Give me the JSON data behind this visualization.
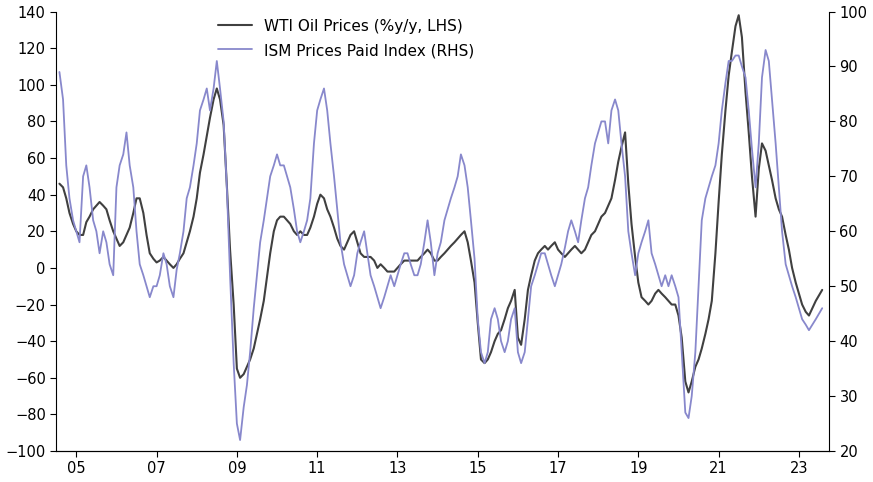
{
  "wti_label": "WTI Oil Prices (%y/y, LHS)",
  "ism_label": "ISM Prices Paid Index (RHS)",
  "wti_color": "#404040",
  "ism_color": "#8888cc",
  "lhs_ylim": [
    -100,
    140
  ],
  "rhs_ylim": [
    20,
    100
  ],
  "lhs_yticks": [
    -100,
    -80,
    -60,
    -40,
    -20,
    0,
    20,
    40,
    60,
    80,
    100,
    120,
    140
  ],
  "rhs_yticks": [
    20,
    30,
    40,
    50,
    60,
    70,
    80,
    90,
    100
  ],
  "xtick_labels": [
    "05",
    "07",
    "09",
    "11",
    "13",
    "15",
    "17",
    "19",
    "21",
    "23"
  ],
  "xtick_positions": [
    2005,
    2007,
    2009,
    2011,
    2013,
    2015,
    2017,
    2019,
    2021,
    2023
  ],
  "background_color": "#ffffff",
  "xlim": [
    2004.5,
    2023.75
  ],
  "lhs_linewidth": 1.5,
  "rhs_linewidth": 1.3,
  "wti_dates": [
    2004.58,
    2004.67,
    2004.75,
    2004.83,
    2004.92,
    2005.0,
    2005.08,
    2005.17,
    2005.25,
    2005.33,
    2005.42,
    2005.5,
    2005.58,
    2005.67,
    2005.75,
    2005.83,
    2005.92,
    2006.0,
    2006.08,
    2006.17,
    2006.25,
    2006.33,
    2006.42,
    2006.5,
    2006.58,
    2006.67,
    2006.75,
    2006.83,
    2006.92,
    2007.0,
    2007.08,
    2007.17,
    2007.25,
    2007.33,
    2007.42,
    2007.5,
    2007.58,
    2007.67,
    2007.75,
    2007.83,
    2007.92,
    2008.0,
    2008.08,
    2008.17,
    2008.25,
    2008.33,
    2008.42,
    2008.5,
    2008.58,
    2008.67,
    2008.75,
    2008.83,
    2008.92,
    2009.0,
    2009.08,
    2009.17,
    2009.25,
    2009.33,
    2009.42,
    2009.5,
    2009.58,
    2009.67,
    2009.75,
    2009.83,
    2009.92,
    2010.0,
    2010.08,
    2010.17,
    2010.25,
    2010.33,
    2010.42,
    2010.5,
    2010.58,
    2010.67,
    2010.75,
    2010.83,
    2010.92,
    2011.0,
    2011.08,
    2011.17,
    2011.25,
    2011.33,
    2011.42,
    2011.5,
    2011.58,
    2011.67,
    2011.75,
    2011.83,
    2011.92,
    2012.0,
    2012.08,
    2012.17,
    2012.25,
    2012.33,
    2012.42,
    2012.5,
    2012.58,
    2012.67,
    2012.75,
    2012.83,
    2012.92,
    2013.0,
    2013.08,
    2013.17,
    2013.25,
    2013.33,
    2013.42,
    2013.5,
    2013.58,
    2013.67,
    2013.75,
    2013.83,
    2013.92,
    2014.0,
    2014.08,
    2014.17,
    2014.25,
    2014.33,
    2014.42,
    2014.5,
    2014.58,
    2014.67,
    2014.75,
    2014.83,
    2014.92,
    2015.0,
    2015.08,
    2015.17,
    2015.25,
    2015.33,
    2015.42,
    2015.5,
    2015.58,
    2015.67,
    2015.75,
    2015.83,
    2015.92,
    2016.0,
    2016.08,
    2016.17,
    2016.25,
    2016.33,
    2016.42,
    2016.5,
    2016.58,
    2016.67,
    2016.75,
    2016.83,
    2016.92,
    2017.0,
    2017.08,
    2017.17,
    2017.25,
    2017.33,
    2017.42,
    2017.5,
    2017.58,
    2017.67,
    2017.75,
    2017.83,
    2017.92,
    2018.0,
    2018.08,
    2018.17,
    2018.25,
    2018.33,
    2018.42,
    2018.5,
    2018.58,
    2018.67,
    2018.75,
    2018.83,
    2018.92,
    2019.0,
    2019.08,
    2019.17,
    2019.25,
    2019.33,
    2019.42,
    2019.5,
    2019.58,
    2019.67,
    2019.75,
    2019.83,
    2019.92,
    2020.0,
    2020.08,
    2020.17,
    2020.25,
    2020.33,
    2020.42,
    2020.5,
    2020.58,
    2020.67,
    2020.75,
    2020.83,
    2020.92,
    2021.0,
    2021.08,
    2021.17,
    2021.25,
    2021.33,
    2021.42,
    2021.5,
    2021.58,
    2021.67,
    2021.75,
    2021.83,
    2021.92,
    2022.0,
    2022.08,
    2022.17,
    2022.25,
    2022.33,
    2022.42,
    2022.5,
    2022.58,
    2022.67,
    2022.75,
    2022.83,
    2022.92,
    2023.0,
    2023.08,
    2023.17,
    2023.25,
    2023.42,
    2023.58
  ],
  "wti_values": [
    46,
    44,
    38,
    30,
    24,
    20,
    18,
    18,
    25,
    28,
    32,
    34,
    36,
    34,
    32,
    26,
    20,
    16,
    12,
    14,
    18,
    22,
    30,
    38,
    38,
    30,
    18,
    8,
    5,
    3,
    4,
    6,
    4,
    2,
    0,
    2,
    5,
    8,
    14,
    20,
    28,
    38,
    52,
    62,
    72,
    82,
    92,
    98,
    92,
    78,
    45,
    10,
    -20,
    -55,
    -60,
    -58,
    -54,
    -50,
    -44,
    -36,
    -28,
    -18,
    -5,
    8,
    20,
    26,
    28,
    28,
    26,
    24,
    20,
    18,
    20,
    18,
    18,
    22,
    28,
    35,
    40,
    38,
    32,
    28,
    22,
    16,
    12,
    10,
    14,
    18,
    20,
    14,
    8,
    6,
    6,
    6,
    4,
    0,
    2,
    0,
    -2,
    -2,
    -2,
    0,
    2,
    4,
    4,
    4,
    4,
    4,
    6,
    8,
    10,
    8,
    4,
    4,
    6,
    8,
    10,
    12,
    14,
    16,
    18,
    20,
    14,
    4,
    -8,
    -30,
    -50,
    -52,
    -50,
    -46,
    -40,
    -36,
    -34,
    -28,
    -22,
    -18,
    -12,
    -38,
    -42,
    -28,
    -12,
    -4,
    4,
    8,
    10,
    12,
    10,
    12,
    14,
    10,
    8,
    6,
    8,
    10,
    12,
    10,
    8,
    10,
    14,
    18,
    20,
    24,
    28,
    30,
    34,
    38,
    48,
    58,
    66,
    74,
    46,
    24,
    6,
    -8,
    -16,
    -18,
    -20,
    -18,
    -14,
    -12,
    -14,
    -16,
    -18,
    -20,
    -20,
    -26,
    -38,
    -62,
    -68,
    -62,
    -54,
    -50,
    -44,
    -36,
    -28,
    -18,
    8,
    36,
    62,
    86,
    105,
    118,
    132,
    138,
    126,
    96,
    74,
    50,
    28,
    54,
    68,
    64,
    56,
    48,
    38,
    32,
    28,
    18,
    10,
    0,
    -8,
    -14,
    -20,
    -24,
    -26,
    -18,
    -12
  ],
  "ism_dates": [
    2004.58,
    2004.67,
    2004.75,
    2004.83,
    2004.92,
    2005.0,
    2005.08,
    2005.17,
    2005.25,
    2005.33,
    2005.42,
    2005.5,
    2005.58,
    2005.67,
    2005.75,
    2005.83,
    2005.92,
    2006.0,
    2006.08,
    2006.17,
    2006.25,
    2006.33,
    2006.42,
    2006.5,
    2006.58,
    2006.67,
    2006.75,
    2006.83,
    2006.92,
    2007.0,
    2007.08,
    2007.17,
    2007.25,
    2007.33,
    2007.42,
    2007.5,
    2007.58,
    2007.67,
    2007.75,
    2007.83,
    2007.92,
    2008.0,
    2008.08,
    2008.17,
    2008.25,
    2008.33,
    2008.42,
    2008.5,
    2008.58,
    2008.67,
    2008.75,
    2008.83,
    2008.92,
    2009.0,
    2009.08,
    2009.17,
    2009.25,
    2009.33,
    2009.42,
    2009.5,
    2009.58,
    2009.67,
    2009.75,
    2009.83,
    2009.92,
    2010.0,
    2010.08,
    2010.17,
    2010.25,
    2010.33,
    2010.42,
    2010.5,
    2010.58,
    2010.67,
    2010.75,
    2010.83,
    2010.92,
    2011.0,
    2011.08,
    2011.17,
    2011.25,
    2011.33,
    2011.42,
    2011.5,
    2011.58,
    2011.67,
    2011.75,
    2011.83,
    2011.92,
    2012.0,
    2012.08,
    2012.17,
    2012.25,
    2012.33,
    2012.42,
    2012.5,
    2012.58,
    2012.67,
    2012.75,
    2012.83,
    2012.92,
    2013.0,
    2013.08,
    2013.17,
    2013.25,
    2013.33,
    2013.42,
    2013.5,
    2013.58,
    2013.67,
    2013.75,
    2013.83,
    2013.92,
    2014.0,
    2014.08,
    2014.17,
    2014.25,
    2014.33,
    2014.42,
    2014.5,
    2014.58,
    2014.67,
    2014.75,
    2014.83,
    2014.92,
    2015.0,
    2015.08,
    2015.17,
    2015.25,
    2015.33,
    2015.42,
    2015.5,
    2015.58,
    2015.67,
    2015.75,
    2015.83,
    2015.92,
    2016.0,
    2016.08,
    2016.17,
    2016.25,
    2016.33,
    2016.42,
    2016.5,
    2016.58,
    2016.67,
    2016.75,
    2016.83,
    2016.92,
    2017.0,
    2017.08,
    2017.17,
    2017.25,
    2017.33,
    2017.42,
    2017.5,
    2017.58,
    2017.67,
    2017.75,
    2017.83,
    2017.92,
    2018.0,
    2018.08,
    2018.17,
    2018.25,
    2018.33,
    2018.42,
    2018.5,
    2018.58,
    2018.67,
    2018.75,
    2018.83,
    2018.92,
    2019.0,
    2019.08,
    2019.17,
    2019.25,
    2019.33,
    2019.42,
    2019.5,
    2019.58,
    2019.67,
    2019.75,
    2019.83,
    2019.92,
    2020.0,
    2020.08,
    2020.17,
    2020.25,
    2020.33,
    2020.42,
    2020.5,
    2020.58,
    2020.67,
    2020.75,
    2020.83,
    2020.92,
    2021.0,
    2021.08,
    2021.17,
    2021.25,
    2021.33,
    2021.42,
    2021.5,
    2021.58,
    2021.67,
    2021.75,
    2021.83,
    2021.92,
    2022.0,
    2022.08,
    2022.17,
    2022.25,
    2022.33,
    2022.42,
    2022.5,
    2022.58,
    2022.67,
    2022.75,
    2022.83,
    2022.92,
    2023.0,
    2023.08,
    2023.17,
    2023.25,
    2023.42,
    2023.58
  ],
  "ism_values": [
    89,
    84,
    72,
    66,
    62,
    60,
    58,
    70,
    72,
    68,
    62,
    60,
    56,
    60,
    58,
    54,
    52,
    68,
    72,
    74,
    78,
    72,
    68,
    60,
    54,
    52,
    50,
    48,
    50,
    50,
    52,
    56,
    54,
    50,
    48,
    53,
    56,
    60,
    66,
    68,
    72,
    76,
    82,
    84,
    86,
    82,
    86,
    91,
    86,
    80,
    68,
    52,
    36,
    25,
    22,
    28,
    32,
    38,
    46,
    52,
    58,
    62,
    66,
    70,
    72,
    74,
    72,
    72,
    70,
    68,
    64,
    60,
    58,
    60,
    62,
    66,
    76,
    82,
    84,
    86,
    82,
    76,
    70,
    64,
    58,
    54,
    52,
    50,
    52,
    56,
    58,
    60,
    56,
    52,
    50,
    48,
    46,
    48,
    50,
    52,
    50,
    52,
    54,
    56,
    56,
    54,
    52,
    52,
    54,
    58,
    62,
    58,
    52,
    56,
    58,
    62,
    64,
    66,
    68,
    70,
    74,
    72,
    68,
    62,
    55,
    44,
    38,
    36,
    38,
    44,
    46,
    44,
    40,
    38,
    40,
    44,
    46,
    38,
    36,
    38,
    44,
    50,
    52,
    54,
    56,
    56,
    54,
    52,
    50,
    52,
    54,
    57,
    60,
    62,
    60,
    58,
    62,
    66,
    68,
    72,
    76,
    78,
    80,
    80,
    76,
    82,
    84,
    82,
    76,
    70,
    60,
    56,
    52,
    56,
    58,
    60,
    62,
    56,
    54,
    52,
    50,
    52,
    50,
    52,
    50,
    48,
    38,
    27,
    26,
    30,
    38,
    50,
    62,
    66,
    68,
    70,
    72,
    76,
    82,
    87,
    91,
    91,
    92,
    92,
    90,
    88,
    82,
    75,
    68,
    76,
    88,
    93,
    91,
    84,
    76,
    68,
    60,
    54,
    52,
    50,
    48,
    46,
    44,
    43,
    42,
    44,
    46
  ]
}
